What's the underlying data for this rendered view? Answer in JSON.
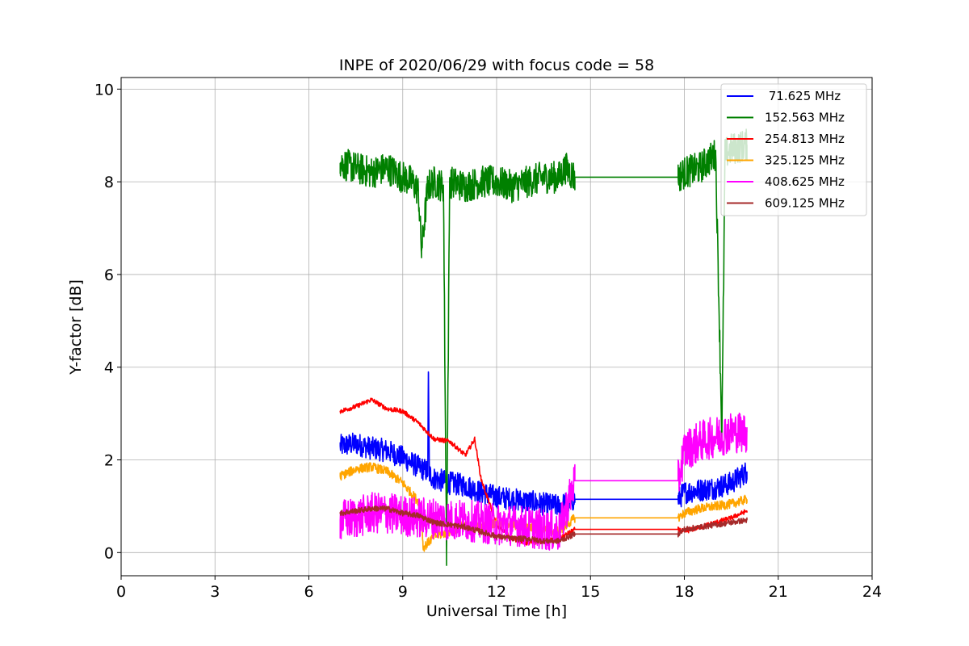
{
  "chart_data": {
    "type": "line",
    "title": "INPE of 2020/06/29 with focus code = 58",
    "xlabel": "Universal Time [h]",
    "ylabel": "Y-factor [dB]",
    "xlim": [
      0,
      24
    ],
    "ylim": [
      -0.5,
      10.25
    ],
    "xticks": [
      0,
      3,
      6,
      9,
      12,
      15,
      18,
      21,
      24
    ],
    "xtick_labels": [
      "0",
      "3",
      "6",
      "9",
      "12",
      "15",
      "18",
      "21",
      "24"
    ],
    "yticks": [
      0,
      2,
      4,
      6,
      8,
      10
    ],
    "ytick_labels": [
      "0",
      "2",
      "4",
      "6",
      "8",
      "10"
    ],
    "grid": true,
    "legend_position": "top-right",
    "series": [
      {
        "name": " 71.625 MHz",
        "color": "#0000ff",
        "x": [
          7.0,
          7.5,
          8.0,
          8.5,
          9.0,
          9.5,
          9.8,
          9.82,
          9.85,
          10.0,
          10.5,
          11.0,
          11.5,
          12.0,
          12.5,
          13.0,
          13.5,
          14.0,
          14.5,
          17.8,
          18.0,
          18.5,
          19.0,
          19.5,
          20.0
        ],
        "values": [
          2.3,
          2.35,
          2.25,
          2.2,
          2.05,
          1.85,
          1.75,
          3.9,
          1.7,
          1.6,
          1.5,
          1.45,
          1.3,
          1.2,
          1.15,
          1.1,
          1.05,
          1.0,
          1.15,
          1.15,
          1.3,
          1.35,
          1.4,
          1.5,
          1.75
        ],
        "noise": 0.25
      },
      {
        "name": "152.563 MHz",
        "color": "#008000",
        "x": [
          7.0,
          7.5,
          8.0,
          8.5,
          9.0,
          9.3,
          9.5,
          9.6,
          9.8,
          10.0,
          10.3,
          10.4,
          10.5,
          11.0,
          11.5,
          12.0,
          12.5,
          13.0,
          13.5,
          14.0,
          14.2,
          14.5,
          17.8,
          18.0,
          18.5,
          19.0,
          19.2,
          19.3,
          19.5,
          20.0
        ],
        "values": [
          8.4,
          8.3,
          8.2,
          8.3,
          8.1,
          8.0,
          7.8,
          6.5,
          7.9,
          8.0,
          7.9,
          0.0,
          8.0,
          7.9,
          8.0,
          8.0,
          7.9,
          8.0,
          8.1,
          8.1,
          8.3,
          8.1,
          8.1,
          8.2,
          8.3,
          8.6,
          2.5,
          8.6,
          8.7,
          8.8
        ],
        "noise": 0.35
      },
      {
        "name": "254.813 MHz",
        "color": "#ff0000",
        "x": [
          7.0,
          7.5,
          8.0,
          8.5,
          9.0,
          9.5,
          10.0,
          10.5,
          11.0,
          11.3,
          11.5,
          12.0,
          12.5,
          13.0,
          13.5,
          14.0,
          14.5,
          17.8,
          18.0,
          18.5,
          19.0,
          19.5,
          20.0
        ],
        "values": [
          3.05,
          3.15,
          3.3,
          3.1,
          3.05,
          2.8,
          2.45,
          2.4,
          2.1,
          2.45,
          1.6,
          0.6,
          0.3,
          0.2,
          0.25,
          0.3,
          0.5,
          0.5,
          0.45,
          0.55,
          0.65,
          0.75,
          0.9
        ],
        "noise": 0.05
      },
      {
        "name": "325.125 MHz",
        "color": "#ffa500",
        "x": [
          7.0,
          7.5,
          8.0,
          8.5,
          9.0,
          9.5,
          9.6,
          9.65,
          10.0,
          10.5,
          11.0,
          11.5,
          12.0,
          12.5,
          13.0,
          13.5,
          14.0,
          14.5,
          17.8,
          18.0,
          18.5,
          19.0,
          19.5,
          20.0
        ],
        "values": [
          1.65,
          1.8,
          1.85,
          1.75,
          1.5,
          1.1,
          0.95,
          0.1,
          0.35,
          0.45,
          0.6,
          0.55,
          0.65,
          0.6,
          0.55,
          0.5,
          0.45,
          0.75,
          0.75,
          0.85,
          0.95,
          1.0,
          1.05,
          1.15
        ],
        "noise": 0.1
      },
      {
        "name": "408.625 MHz",
        "color": "#ff00ff",
        "x": [
          7.0,
          7.5,
          8.0,
          8.5,
          9.0,
          9.5,
          10.0,
          10.5,
          11.0,
          11.5,
          12.0,
          12.5,
          13.0,
          13.5,
          14.0,
          14.5,
          17.8,
          18.0,
          18.5,
          19.0,
          19.5,
          20.0
        ],
        "values": [
          0.7,
          0.75,
          0.85,
          0.85,
          0.8,
          0.75,
          0.75,
          0.7,
          0.7,
          0.65,
          0.6,
          0.6,
          0.55,
          0.5,
          0.45,
          1.55,
          1.55,
          2.2,
          2.4,
          2.5,
          2.6,
          2.6
        ],
        "noise": 0.45
      },
      {
        "name": "609.125 MHz",
        "color": "#a52a2a",
        "x": [
          7.0,
          7.5,
          8.0,
          8.5,
          9.0,
          9.5,
          10.0,
          10.5,
          11.0,
          11.5,
          12.0,
          12.5,
          13.0,
          13.5,
          14.0,
          14.5,
          17.8,
          18.0,
          18.5,
          19.0,
          19.5,
          20.0
        ],
        "values": [
          0.85,
          0.9,
          0.95,
          0.95,
          0.85,
          0.8,
          0.65,
          0.6,
          0.55,
          0.45,
          0.35,
          0.3,
          0.3,
          0.25,
          0.25,
          0.4,
          0.4,
          0.5,
          0.55,
          0.6,
          0.65,
          0.7
        ],
        "noise": 0.06
      }
    ]
  }
}
